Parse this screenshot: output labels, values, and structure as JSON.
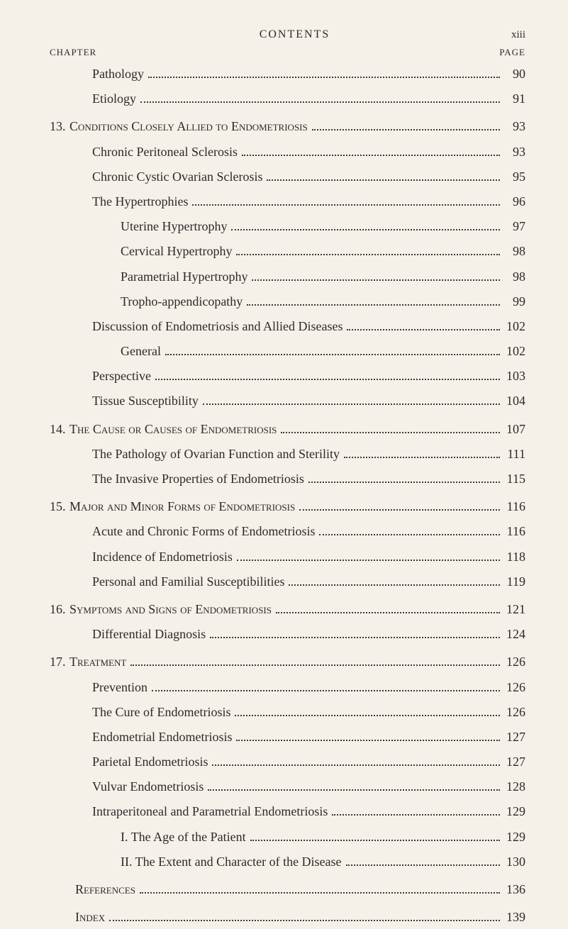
{
  "header": {
    "title": "CONTENTS",
    "roman_page": "xiii",
    "chapter_label": "CHAPTER",
    "page_label": "PAGE"
  },
  "entries": [
    {
      "indent": 1,
      "label": "Pathology",
      "page": "90",
      "gap": false
    },
    {
      "indent": 1,
      "label": "Etiology",
      "page": "91",
      "gap": false
    },
    {
      "indent": 0,
      "num": "13.",
      "label": "Conditions Closely Allied to Endometriosis",
      "page": "93",
      "smallcaps": true,
      "gap": true
    },
    {
      "indent": 1,
      "label": "Chronic Peritoneal Sclerosis",
      "page": "93",
      "gap": false
    },
    {
      "indent": 1,
      "label": "Chronic Cystic Ovarian Sclerosis",
      "page": "95",
      "gap": false
    },
    {
      "indent": 1,
      "label": "The Hypertrophies",
      "page": "96",
      "gap": false
    },
    {
      "indent": 2,
      "label": "Uterine Hypertrophy",
      "page": "97",
      "gap": false
    },
    {
      "indent": 2,
      "label": "Cervical Hypertrophy",
      "page": "98",
      "gap": false
    },
    {
      "indent": 2,
      "label": "Parametrial Hypertrophy",
      "page": "98",
      "gap": false
    },
    {
      "indent": 2,
      "label": "Tropho-appendicopathy",
      "page": "99",
      "gap": false
    },
    {
      "indent": 1,
      "label": "Discussion of Endometriosis and Allied Diseases",
      "page": "102",
      "gap": false
    },
    {
      "indent": 2,
      "label": "General",
      "page": "102",
      "gap": false
    },
    {
      "indent": 1,
      "label": "Perspective",
      "page": "103",
      "gap": false
    },
    {
      "indent": 1,
      "label": "Tissue Susceptibility",
      "page": "104",
      "gap": false
    },
    {
      "indent": 0,
      "num": "14.",
      "label": "The Cause or Causes of Endometriosis",
      "page": "107",
      "smallcaps": true,
      "gap": true
    },
    {
      "indent": 1,
      "label": "The Pathology of Ovarian Function and Sterility",
      "page": "111",
      "gap": false
    },
    {
      "indent": 1,
      "label": "The Invasive Properties of Endometriosis",
      "page": "115",
      "gap": false
    },
    {
      "indent": 0,
      "num": "15.",
      "label": "Major and Minor Forms of Endometriosis",
      "page": "116",
      "smallcaps": true,
      "gap": true
    },
    {
      "indent": 1,
      "label": "Acute and Chronic Forms of Endometriosis",
      "page": "116",
      "gap": false
    },
    {
      "indent": 1,
      "label": "Incidence of Endometriosis",
      "page": "118",
      "gap": false
    },
    {
      "indent": 1,
      "label": "Personal and Familial Susceptibilities",
      "page": "119",
      "gap": false
    },
    {
      "indent": 0,
      "num": "16.",
      "label": "Symptoms and Signs of Endometriosis",
      "page": "121",
      "smallcaps": true,
      "gap": true
    },
    {
      "indent": 1,
      "label": "Differential Diagnosis",
      "page": "124",
      "gap": false
    },
    {
      "indent": 0,
      "num": "17.",
      "label": "Treatment",
      "page": "126",
      "smallcaps": true,
      "gap": true
    },
    {
      "indent": 1,
      "label": "Prevention",
      "page": "126",
      "gap": false
    },
    {
      "indent": 1,
      "label": "The Cure of Endometriosis",
      "page": "126",
      "gap": false
    },
    {
      "indent": 1,
      "label": "Endometrial Endometriosis",
      "page": "127",
      "gap": false
    },
    {
      "indent": 1,
      "label": "Parietal Endometriosis",
      "page": "127",
      "gap": false
    },
    {
      "indent": 1,
      "label": "Vulvar Endometriosis",
      "page": "128",
      "gap": false
    },
    {
      "indent": 1,
      "label": "Intraperitoneal and Parametrial Endometriosis",
      "page": "129",
      "gap": false
    },
    {
      "indent": 2,
      "label": "I. The Age of the Patient",
      "page": "129",
      "gap": false
    },
    {
      "indent": 2,
      "label": "II. The Extent and Character of the Disease",
      "page": "130",
      "gap": false
    },
    {
      "indent": 0,
      "num": "",
      "label": "References",
      "page": "136",
      "smallcaps": true,
      "gap": true,
      "padleft": 36
    },
    {
      "indent": 0,
      "num": "",
      "label": "Index",
      "page": "139",
      "smallcaps": true,
      "gap": true,
      "padleft": 36
    }
  ]
}
